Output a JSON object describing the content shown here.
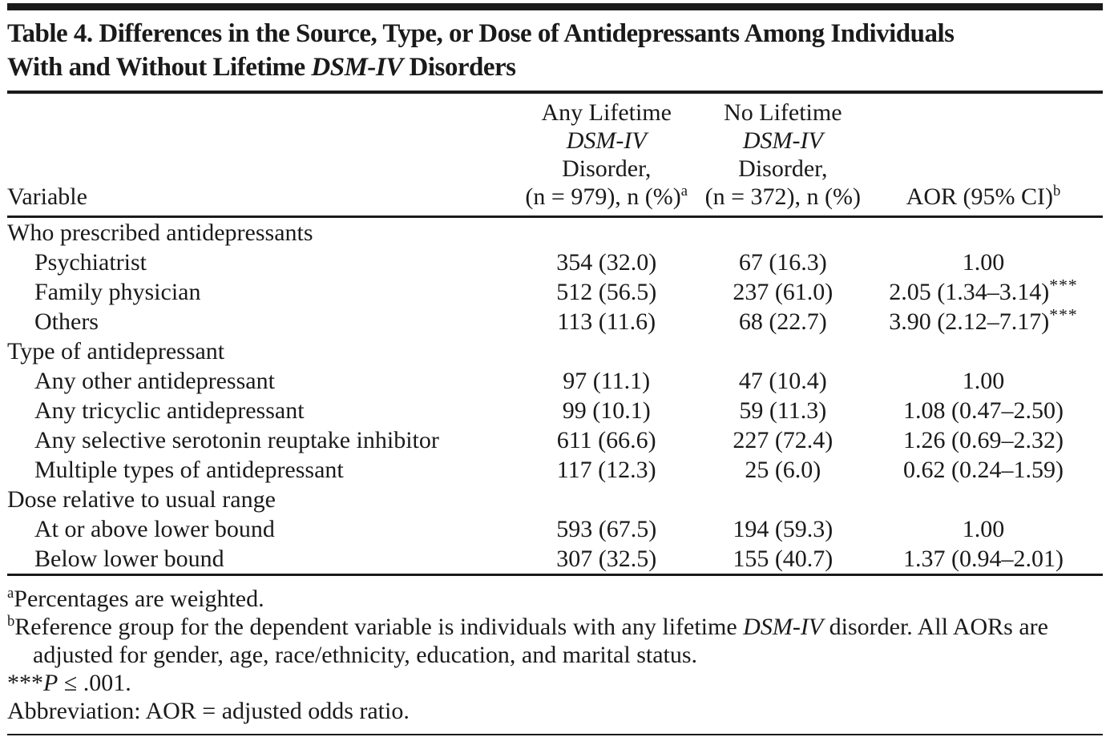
{
  "page": {
    "background": "#ffffff",
    "ink": "#1a1a1a"
  },
  "title": {
    "line1": "Table 4. Differences in the Source, Type, or Dose of Antidepressants Among Individuals",
    "line2_pre": "With and Without Lifetime ",
    "line2_italic": "DSM-IV",
    "line2_post": " Disorders"
  },
  "table": {
    "columns": {
      "variable": "Variable",
      "any_lifetime": {
        "l1": "Any Lifetime",
        "l2_italic": "DSM-IV",
        "l3": "Disorder,",
        "l4": "(n = 979), n (%)",
        "sup": "a"
      },
      "no_lifetime": {
        "l1": "No Lifetime",
        "l2_italic": "DSM-IV",
        "l3": "Disorder,",
        "l4": "(n = 372), n (%)",
        "sup": ""
      },
      "aor": {
        "label": "AOR (95% CI)",
        "sup": "b"
      }
    },
    "rows": [
      {
        "label": "Who prescribed antidepressants",
        "group": true,
        "any": "",
        "no": "",
        "aor": "",
        "sig": ""
      },
      {
        "label": "Psychiatrist",
        "group": false,
        "any": "354 (32.0)",
        "no": "67 (16.3)",
        "aor": "1.00",
        "sig": ""
      },
      {
        "label": "Family physician",
        "group": false,
        "any": "512 (56.5)",
        "no": "237 (61.0)",
        "aor": "2.05 (1.34–3.14)",
        "sig": "***"
      },
      {
        "label": "Others",
        "group": false,
        "any": "113 (11.6)",
        "no": "68 (22.7)",
        "aor": "3.90 (2.12–7.17)",
        "sig": "***"
      },
      {
        "label": "Type of antidepressant",
        "group": true,
        "any": "",
        "no": "",
        "aor": "",
        "sig": ""
      },
      {
        "label": "Any other antidepressant",
        "group": false,
        "any": "97 (11.1)",
        "no": "47 (10.4)",
        "aor": "1.00",
        "sig": ""
      },
      {
        "label": "Any tricyclic antidepressant",
        "group": false,
        "any": "99 (10.1)",
        "no": "59 (11.3)",
        "aor": "1.08 (0.47–2.50)",
        "sig": ""
      },
      {
        "label": "Any selective serotonin reuptake inhibitor",
        "group": false,
        "any": "611 (66.6)",
        "no": "227 (72.4)",
        "aor": "1.26 (0.69–2.32)",
        "sig": ""
      },
      {
        "label": "Multiple types of antidepressant",
        "group": false,
        "any": "117 (12.3)",
        "no": "25 (6.0)",
        "aor": "0.62 (0.24–1.59)",
        "sig": ""
      },
      {
        "label": "Dose relative to usual range",
        "group": true,
        "any": "",
        "no": "",
        "aor": "",
        "sig": ""
      },
      {
        "label": "At or above lower bound",
        "group": false,
        "any": "593 (67.5)",
        "no": "194 (59.3)",
        "aor": "1.00",
        "sig": ""
      },
      {
        "label": "Below lower bound",
        "group": false,
        "any": "307 (32.5)",
        "no": "155 (40.7)",
        "aor": "1.37 (0.94–2.01)",
        "sig": ""
      }
    ]
  },
  "footnotes": {
    "a_sup": "a",
    "a_text": "Percentages are weighted.",
    "b_sup": "b",
    "b_pre": "Reference group for the dependent variable is individuals with any lifetime ",
    "b_italic": "DSM-IV",
    "b_post": " disorder. All AORs are adjusted for gender, age, race/ethnicity, education, and marital status.",
    "sig_stars": "***",
    "sig_p_italic": "P",
    "sig_rest": " ≤ .001.",
    "abbreviation": "Abbreviation: AOR = adjusted odds ratio."
  }
}
